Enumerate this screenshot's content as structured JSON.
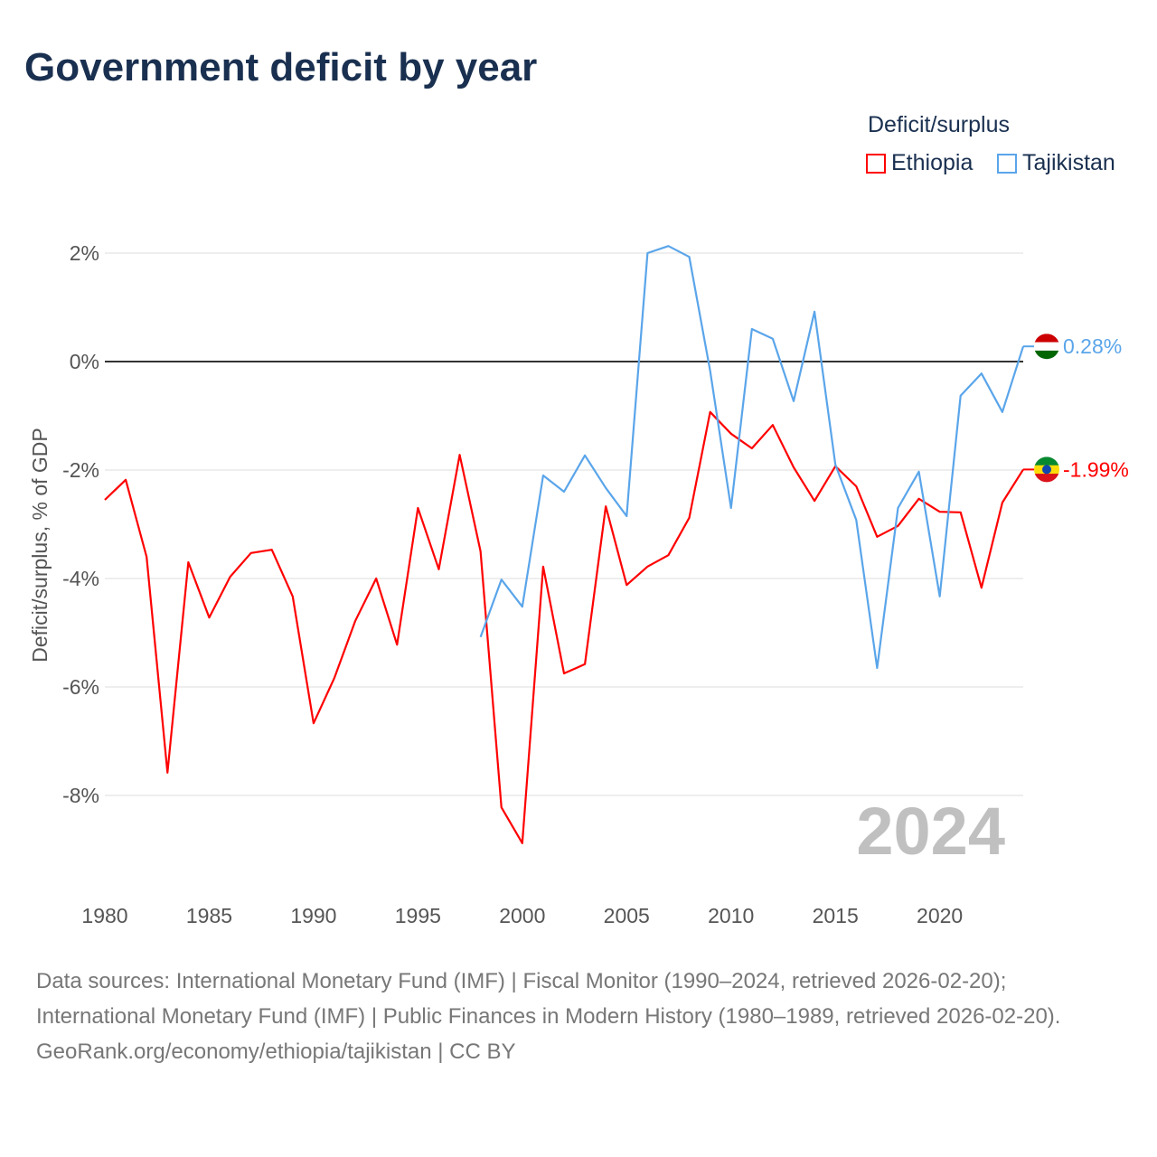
{
  "title": "Government deficit by year",
  "legend": {
    "title": "Deficit/surplus",
    "items": [
      {
        "name": "Ethiopia",
        "color": "#ff0000"
      },
      {
        "name": "Tajikistan",
        "color": "#5aa5ea"
      }
    ]
  },
  "watermark_year": "2024",
  "footer": {
    "sources": "Data sources: International Monetary Fund (IMF) | Fiscal Monitor (1990–2024, retrieved 2026-02-20); International Monetary Fund (IMF) | Public Finances in Modern History (1980–1989, retrieved 2026-02-20).",
    "credit": "GeoRank.org/economy/ethiopia/tajikistan | CC BY"
  },
  "chart_data": {
    "type": "line",
    "title": "Government deficit by year",
    "xlabel": "",
    "ylabel": "Deficit/surplus, % of GDP",
    "xlim": [
      1980,
      2024
    ],
    "ylim": [
      -9.5,
      2.5
    ],
    "x_ticks": [
      1980,
      1985,
      1990,
      1995,
      2000,
      2005,
      2010,
      2015,
      2020
    ],
    "x_tick_labels": [
      "1980",
      "1985",
      "1990",
      "1995",
      "2000",
      "2005",
      "2010",
      "2015",
      "2020"
    ],
    "y_ticks": [
      2,
      0,
      -2,
      -4,
      -6,
      -8
    ],
    "y_tick_labels": [
      "2%",
      "0%",
      "-2%",
      "-4%",
      "-6%",
      "-8%"
    ],
    "grid": true,
    "legend_position": "top-right",
    "series": [
      {
        "name": "Ethiopia",
        "color": "#ff0000",
        "end_label": "-1.99%",
        "x": [
          1980,
          1981,
          1982,
          1983,
          1984,
          1985,
          1986,
          1987,
          1988,
          1989,
          1990,
          1991,
          1992,
          1993,
          1994,
          1995,
          1996,
          1997,
          1998,
          1999,
          2000,
          2001,
          2002,
          2003,
          2004,
          2005,
          2006,
          2007,
          2008,
          2009,
          2010,
          2011,
          2012,
          2013,
          2014,
          2015,
          2016,
          2017,
          2018,
          2019,
          2020,
          2021,
          2022,
          2023,
          2024
        ],
        "values": [
          -2.55,
          -2.18,
          -3.6,
          -7.58,
          -3.7,
          -4.72,
          -3.97,
          -3.53,
          -3.47,
          -4.33,
          -6.67,
          -5.83,
          -4.78,
          -4.0,
          -5.22,
          -2.7,
          -3.83,
          -1.72,
          -3.5,
          -8.22,
          -8.88,
          -3.78,
          -5.75,
          -5.58,
          -2.67,
          -4.12,
          -3.78,
          -3.57,
          -2.88,
          -0.93,
          -1.33,
          -1.6,
          -1.17,
          -1.95,
          -2.57,
          -1.93,
          -2.3,
          -3.23,
          -3.03,
          -2.53,
          -2.77,
          -2.78,
          -4.17,
          -2.6,
          -1.99
        ]
      },
      {
        "name": "Tajikistan",
        "color": "#5aa5ea",
        "end_label": "0.28%",
        "x": [
          1998,
          1999,
          2000,
          2001,
          2002,
          2003,
          2004,
          2005,
          2006,
          2007,
          2008,
          2009,
          2010,
          2011,
          2012,
          2013,
          2014,
          2015,
          2016,
          2017,
          2018,
          2019,
          2020,
          2021,
          2022,
          2023,
          2024
        ],
        "values": [
          -5.08,
          -4.02,
          -4.52,
          -2.1,
          -2.4,
          -1.73,
          -2.33,
          -2.85,
          2.0,
          2.13,
          1.93,
          -0.17,
          -2.7,
          0.6,
          0.42,
          -0.73,
          0.92,
          -1.9,
          -2.92,
          -5.65,
          -2.7,
          -2.03,
          -4.33,
          -0.63,
          -0.22,
          -0.93,
          0.28
        ]
      }
    ]
  }
}
